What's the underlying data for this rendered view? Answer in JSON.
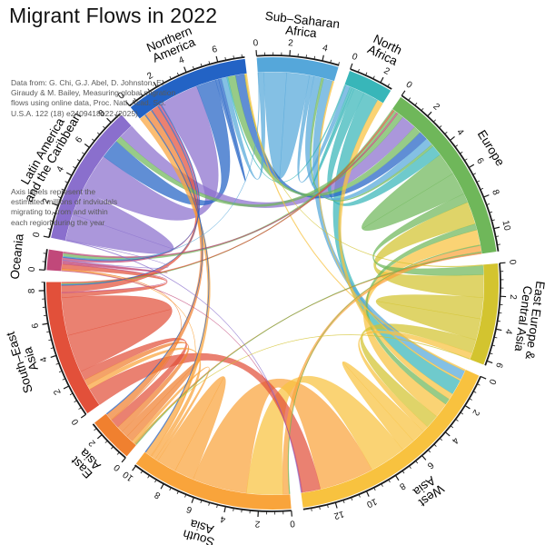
{
  "title": "Migrant Flows in 2022",
  "notes": {
    "source": "Data from: G. Chi, G.J. Abel, D. Johnston, E. Giraudy & M. Bailey, Measuring global migration flows using online data, Proc. Natl. Acad. Sci. U.S.A. 122 (18) e2409418122 (2025).",
    "axis": "Axis labels represent the estimated millions of indviudals migrating to, from and within each region during the year"
  },
  "chart_data": {
    "type": "chord",
    "units": "millions of individuals",
    "tick_interval": 2,
    "minor_tick_interval": 0.5,
    "layout": {
      "start_angle_deg": -4,
      "gap_deg": 3,
      "clockwise": true,
      "direction_of_scale": "clockwise from 0"
    },
    "regions": [
      {
        "id": "SSA",
        "label": "Sub–Saharan\nAfrica",
        "color": "#55a7da",
        "axis_total": 5.0
      },
      {
        "id": "NAF",
        "label": "North\nAfrica",
        "color": "#38b6b9",
        "axis_total": 2.8
      },
      {
        "id": "EUR",
        "label": "Europe",
        "color": "#6fb75a",
        "axis_total": 11.4
      },
      {
        "id": "EECA",
        "label": "East Europe &\nCentral Asia",
        "color": "#d3c42f",
        "axis_total": 6.3
      },
      {
        "id": "WAS",
        "label": "West\nAsia",
        "color": "#f8c23f",
        "axis_total": 14.0
      },
      {
        "id": "SAS",
        "label": "South\nAsia",
        "color": "#f9a43b",
        "axis_total": 10.1
      },
      {
        "id": "EAS",
        "label": "East\nAsia",
        "color": "#f0802f",
        "axis_total": 2.8
      },
      {
        "id": "SEA",
        "label": "South–East\nAsia",
        "color": "#e2503a",
        "axis_total": 8.5
      },
      {
        "id": "OCE",
        "label": "Oceania",
        "color": "#c1487a",
        "axis_total": 1.3
      },
      {
        "id": "LAC",
        "label": "Latin America\nand the Caribbean",
        "color": "#8a6fcd",
        "axis_total": 8.8
      },
      {
        "id": "NAM",
        "label": "Northern\nAmerica",
        "color": "#2363c5",
        "axis_total": 7.7
      }
    ],
    "flows": [
      {
        "from": "SSA",
        "to": "SSA",
        "value": 3.0
      },
      {
        "from": "SSA",
        "to": "EUR",
        "value": 0.5
      },
      {
        "from": "SSA",
        "to": "WAS",
        "value": 0.6
      },
      {
        "from": "SSA",
        "to": "NAM",
        "value": 0.35
      },
      {
        "from": "SSA",
        "to": "NAF",
        "value": 0.3
      },
      {
        "from": "SSA",
        "to": "OCE",
        "value": 0.04
      },
      {
        "from": "NAF",
        "to": "EUR",
        "value": 0.7
      },
      {
        "from": "NAF",
        "to": "WAS",
        "value": 1.0
      },
      {
        "from": "NAF",
        "to": "NAF",
        "value": 0.3
      },
      {
        "from": "NAF",
        "to": "NAM",
        "value": 0.08
      },
      {
        "from": "EUR",
        "to": "EUR",
        "value": 3.0
      },
      {
        "from": "EUR",
        "to": "WAS",
        "value": 0.4
      },
      {
        "from": "EUR",
        "to": "LAC",
        "value": 0.4
      },
      {
        "from": "EUR",
        "to": "NAM",
        "value": 0.5
      },
      {
        "from": "EUR",
        "to": "EECA",
        "value": 0.6
      },
      {
        "from": "EUR",
        "to": "OCE",
        "value": 0.2
      },
      {
        "from": "EUR",
        "to": "SSA",
        "value": 0.15
      },
      {
        "from": "EUR",
        "to": "SAS",
        "value": 0.05
      },
      {
        "from": "EUR",
        "to": "EAS",
        "value": 0.06
      },
      {
        "from": "EUR",
        "to": "SEA",
        "value": 0.08
      },
      {
        "from": "EECA",
        "to": "EUR",
        "value": 1.5
      },
      {
        "from": "EECA",
        "to": "EECA",
        "value": 2.8
      },
      {
        "from": "EECA",
        "to": "WAS",
        "value": 0.9
      },
      {
        "from": "EECA",
        "to": "NAM",
        "value": 0.05
      },
      {
        "from": "EECA",
        "to": "EAS",
        "value": 0.04
      },
      {
        "from": "WAS",
        "to": "NAF",
        "value": 0.4
      },
      {
        "from": "WAS",
        "to": "EUR",
        "value": 1.0
      },
      {
        "from": "WAS",
        "to": "SAS",
        "value": 2.4
      },
      {
        "from": "WAS",
        "to": "EECA",
        "value": 0.4
      },
      {
        "from": "WAS",
        "to": "WAS",
        "value": 1.8
      },
      {
        "from": "WAS",
        "to": "SSA",
        "value": 0.1
      },
      {
        "from": "WAS",
        "to": "NAM",
        "value": 0.1
      },
      {
        "from": "SAS",
        "to": "WAS",
        "value": 3.6
      },
      {
        "from": "SAS",
        "to": "SAS",
        "value": 2.6
      },
      {
        "from": "SAS",
        "to": "NAM",
        "value": 0.4
      },
      {
        "from": "SAS",
        "to": "EUR",
        "value": 0.4
      },
      {
        "from": "SAS",
        "to": "SEA",
        "value": 0.3
      },
      {
        "from": "SAS",
        "to": "EAS",
        "value": 0.2
      },
      {
        "from": "SAS",
        "to": "OCE",
        "value": 0.06
      },
      {
        "from": "EAS",
        "to": "NAM",
        "value": 0.45
      },
      {
        "from": "EAS",
        "to": "EAS",
        "value": 0.9
      },
      {
        "from": "EAS",
        "to": "SEA",
        "value": 0.4
      },
      {
        "from": "EAS",
        "to": "EUR",
        "value": 0.08
      },
      {
        "from": "EAS",
        "to": "OCE",
        "value": 0.05
      },
      {
        "from": "SEA",
        "to": "EAS",
        "value": 0.6
      },
      {
        "from": "SEA",
        "to": "SEA",
        "value": 5.0
      },
      {
        "from": "SEA",
        "to": "WAS",
        "value": 1.2
      },
      {
        "from": "SEA",
        "to": "NAM",
        "value": 0.45
      },
      {
        "from": "SEA",
        "to": "OCE",
        "value": 0.3
      },
      {
        "from": "SEA",
        "to": "EUR",
        "value": 0.08
      },
      {
        "from": "OCE",
        "to": "OCE",
        "value": 0.2
      },
      {
        "from": "OCE",
        "to": "EUR",
        "value": 0.1
      },
      {
        "from": "OCE",
        "to": "NAM",
        "value": 0.15
      },
      {
        "from": "OCE",
        "to": "WAS",
        "value": 0.04
      },
      {
        "from": "OCE",
        "to": "SEA",
        "value": 0.05
      },
      {
        "from": "LAC",
        "to": "NAM",
        "value": 2.6
      },
      {
        "from": "LAC",
        "to": "LAC",
        "value": 3.4
      },
      {
        "from": "LAC",
        "to": "EUR",
        "value": 1.0
      },
      {
        "from": "LAC",
        "to": "WAS",
        "value": 0.05
      },
      {
        "from": "LAC",
        "to": "OCE",
        "value": 0.03
      },
      {
        "from": "NAM",
        "to": "LAC",
        "value": 1.3
      },
      {
        "from": "NAM",
        "to": "EUR",
        "value": 0.6
      },
      {
        "from": "NAM",
        "to": "NAM",
        "value": 0.4
      },
      {
        "from": "NAM",
        "to": "OCE",
        "value": 0.05
      },
      {
        "from": "NAM",
        "to": "EAS",
        "value": 0.06
      },
      {
        "from": "NAM",
        "to": "SEA",
        "value": 0.06
      },
      {
        "from": "NAM",
        "to": "SAS",
        "value": 0.06
      }
    ]
  }
}
